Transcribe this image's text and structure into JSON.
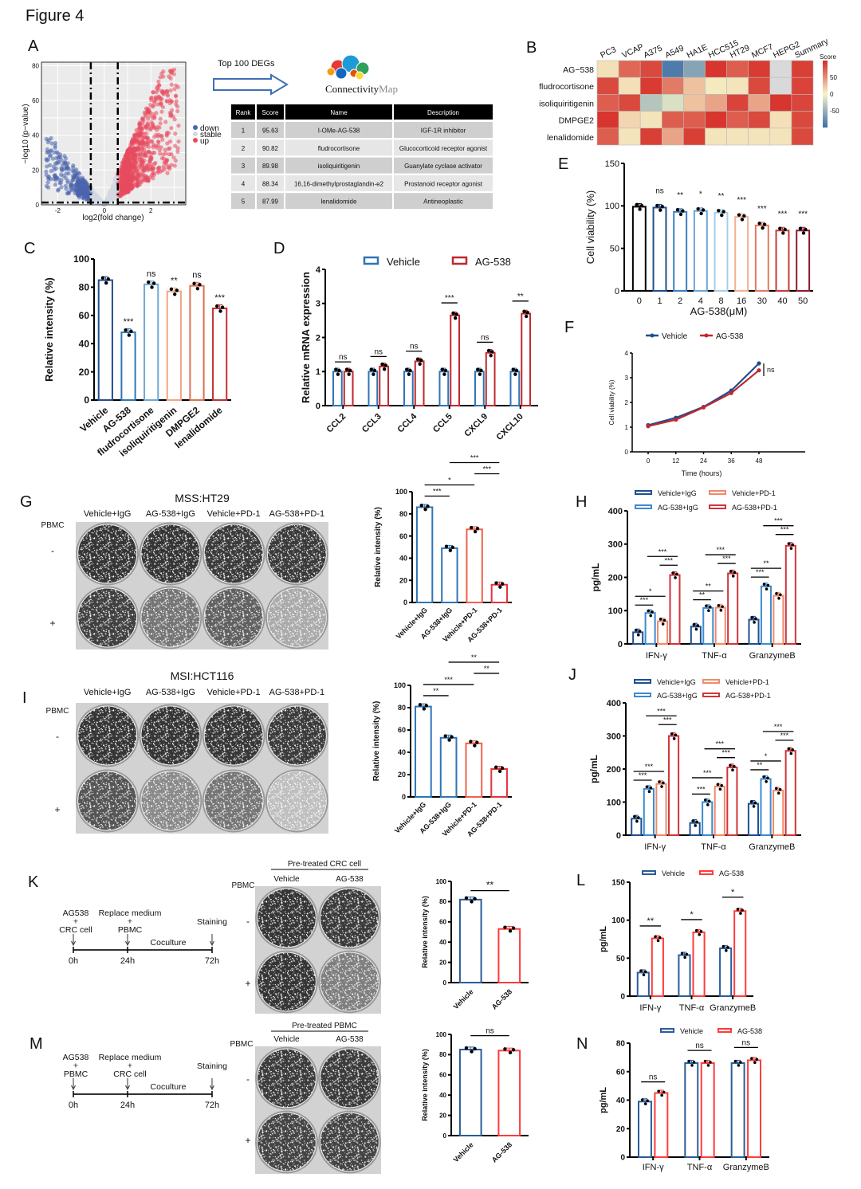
{
  "figure_title": "Figure 4",
  "panels": [
    "A",
    "B",
    "C",
    "D",
    "E",
    "F",
    "G",
    "H",
    "I",
    "J",
    "K",
    "L",
    "M",
    "N"
  ],
  "panelA": {
    "arrow_label": "Top 100 DEGs",
    "logo_text": [
      "Connectivity",
      "Map"
    ],
    "table": {
      "headers": [
        "Rank",
        "Score",
        "Name",
        "Description"
      ],
      "rows": [
        [
          "1",
          "95.63",
          "I-OMe-AG-538",
          "IGF-1R inhibitor"
        ],
        [
          "2",
          "90.82",
          "fludrocortisone",
          "Glucocorticoid receptor agonist"
        ],
        [
          "3",
          "89.98",
          "isoliquiritigenin",
          "Guanylate cyclase activator"
        ],
        [
          "4",
          "88.34",
          "16,16-dimethylprostaglandin-e2",
          "Prostanoid receptor agonist"
        ],
        [
          "5",
          "87.99",
          "lenalidomide",
          "Antineoplastic"
        ]
      ]
    }
  },
  "plateG": {
    "title": "MSS:HT29",
    "columns": [
      "Vehicle+IgG",
      "AG-538+IgG",
      "Vehicle+PD-1",
      "AG-538+PD-1"
    ],
    "row_header": "PBMC",
    "rows": [
      "-",
      "+"
    ]
  },
  "plateI": {
    "title": "MSI:HCT116",
    "columns": [
      "Vehicle+IgG",
      "AG-538+IgG",
      "Vehicle+PD-1",
      "AG-538+PD-1"
    ],
    "row_header": "PBMC",
    "rows": [
      "-",
      "+"
    ]
  },
  "plateK": {
    "header": "Pre-treated CRC cell",
    "columns": [
      "Vehicle",
      "AG-538"
    ],
    "row_header": "PBMC",
    "rows": [
      "-",
      "+"
    ]
  },
  "plateM": {
    "header": "Pre-treated PBMC",
    "columns": [
      "Vehicle",
      "AG-538"
    ],
    "row_header": "PBMC",
    "rows": [
      "-",
      "+"
    ]
  },
  "timelineK": {
    "steps": [
      [
        "AG538",
        "+",
        "CRC cell"
      ],
      [
        "Replace medium",
        "+",
        "PBMC"
      ],
      [
        "Staining"
      ]
    ],
    "phase": "Coculture",
    "times": [
      "0h",
      "24h",
      "72h"
    ]
  },
  "timelineM": {
    "steps": [
      [
        "AG538",
        "+",
        "PBMC"
      ],
      [
        "Replace medium",
        "+",
        "CRC cell"
      ],
      [
        "Staining"
      ]
    ],
    "phase": "Coculture",
    "times": [
      "0h",
      "24h",
      "72h"
    ]
  },
  "chart_data": [
    {
      "panel": "A",
      "type": "scatter",
      "xlabel": "log2(fold change)",
      "ylabel": "−log10 (p−value)",
      "xticks": [
        -2,
        0,
        2
      ],
      "yticks": [
        0,
        20,
        40,
        60,
        80
      ],
      "xlim": [
        -2.7,
        3.5
      ],
      "ylim": [
        0,
        82
      ],
      "legend": [
        "down",
        "stable",
        "up"
      ],
      "legend_colors": [
        "#4a64ad",
        "#d3d9e3",
        "#e84a5f"
      ],
      "thresholds": {
        "log2fc": [
          -0.58,
          0.58
        ],
        "neg_log10_p": 1.3
      },
      "grid": true,
      "legend_position": "right"
    },
    {
      "panel": "B",
      "type": "heatmap",
      "columns": [
        "PC3",
        "VCAP",
        "A375",
        "A549",
        "HA1E",
        "HCC515",
        "HT29",
        "MCF7",
        "HEPG2",
        "Summary"
      ],
      "rows": [
        "AG−538",
        "fludrocortisone",
        "isoliquiritigenin",
        "DMPGE2",
        "lenalidomide"
      ],
      "values": [
        [
          10,
          70,
          85,
          -90,
          -60,
          95,
          75,
          92,
          null,
          90
        ],
        [
          85,
          10,
          92,
          60,
          25,
          5,
          8,
          85,
          null,
          88
        ],
        [
          75,
          85,
          -35,
          -15,
          25,
          40,
          88,
          40,
          95,
          87
        ],
        [
          95,
          15,
          8,
          75,
          75,
          95,
          75,
          85,
          10,
          85
        ],
        [
          75,
          8,
          90,
          40,
          90,
          8,
          8,
          8,
          8,
          85
        ]
      ],
      "colorbar_title": "Score",
      "colorbar_ticks": [
        50,
        0,
        -50
      ],
      "range": [
        -100,
        100
      ],
      "colors": {
        "low": "#3b6ea8",
        "mid": "#f6f4c8",
        "high": "#d52b25",
        "missing": "#d9d9d9"
      }
    },
    {
      "panel": "C",
      "type": "bar",
      "categories": [
        "Vehicle",
        "AG-538",
        "fludrocortisone",
        "isoliquiritigenin",
        "DMPGE2",
        "lenalidomide"
      ],
      "values": [
        85,
        48,
        82,
        77,
        81,
        65
      ],
      "colors": [
        "#1f4e8c",
        "#2e75b6",
        "#6fa8d6",
        "#f4a582",
        "#e07050",
        "#c0302f"
      ],
      "significance": [
        "",
        "***",
        "ns",
        "**",
        "ns",
        "***"
      ],
      "ylabel": "Relative intensity (%)",
      "ylim": [
        0,
        100
      ],
      "yticks": [
        0,
        20,
        40,
        60,
        80,
        100
      ]
    },
    {
      "panel": "D",
      "type": "bar",
      "categories": [
        "CCL2",
        "CCL3",
        "CCL4",
        "CCL5",
        "CXCL9",
        "CXCL10"
      ],
      "series": [
        {
          "name": "Vehicle",
          "values": [
            1,
            1,
            1,
            1,
            1,
            1
          ],
          "color": "#2e75b6"
        },
        {
          "name": "AG-538",
          "values": [
            1.0,
            1.15,
            1.3,
            2.65,
            1.55,
            2.7
          ],
          "color": "#c0282d"
        }
      ],
      "group_comparisons": [
        [
          [
            0,
            1,
            "ns"
          ]
        ],
        [
          [
            0,
            1,
            "ns"
          ]
        ],
        [
          [
            0,
            1,
            "ns"
          ]
        ],
        [
          [
            0,
            1,
            "***"
          ]
        ],
        [
          [
            0,
            1,
            "ns"
          ]
        ],
        [
          [
            0,
            1,
            "**"
          ]
        ]
      ],
      "ylabel": "Relative mRNA expression",
      "ylim": [
        0,
        4
      ],
      "yticks": [
        0,
        1,
        2,
        3,
        4
      ],
      "legend_position": "top"
    },
    {
      "panel": "E",
      "type": "bar",
      "categories": [
        "0",
        "1",
        "2",
        "4",
        "8",
        "16",
        "30",
        "40",
        "50"
      ],
      "values": [
        99,
        98,
        93,
        94,
        92,
        87,
        77,
        71,
        71
      ],
      "colors": [
        "#000000",
        "#1f4e8c",
        "#3a7fc1",
        "#6aa6d8",
        "#a9cde8",
        "#f4b090",
        "#e07a5f",
        "#c73a3a",
        "#8b1a2b"
      ],
      "significance": [
        "",
        "ns",
        "**",
        "*",
        "**",
        "***",
        "***",
        "***",
        "***"
      ],
      "xlabel": "AG-538(μM)",
      "ylabel": "Cell viability (%)",
      "ylim": [
        0,
        150
      ],
      "yticks": [
        0,
        50,
        100,
        150
      ]
    },
    {
      "panel": "F",
      "type": "line",
      "x": [
        0,
        12,
        24,
        36,
        48
      ],
      "series": [
        {
          "name": "Vehicle",
          "values": [
            1.08,
            1.38,
            1.82,
            2.48,
            3.58
          ],
          "color": "#1f4e8c"
        },
        {
          "name": "AG-538",
          "values": [
            1.04,
            1.3,
            1.8,
            2.38,
            3.3
          ],
          "color": "#c0282d"
        }
      ],
      "xlabel": "Time (hours)",
      "ylabel": "Cell viability (%)",
      "ylim": [
        0,
        4
      ],
      "yticks": [
        0,
        1,
        2,
        3,
        4
      ],
      "annotation": "ns",
      "legend_position": "top"
    },
    {
      "panel": "G",
      "type": "bar",
      "categories": [
        "Vehicle+IgG",
        "AG-538+IgG",
        "Vehicle+PD-1",
        "AG-538+PD-1"
      ],
      "values": [
        86,
        49,
        66,
        16
      ],
      "colors": [
        "#2e75b6",
        "#2e75b6",
        "#f0624d",
        "#e3343a"
      ],
      "comparisons": [
        [
          0,
          1,
          "***"
        ],
        [
          0,
          2,
          "*"
        ],
        [
          2,
          3,
          "***"
        ],
        [
          1,
          3,
          "***"
        ]
      ],
      "ylabel": "Relative intensity (%)",
      "ylim": [
        0,
        100
      ],
      "yticks": [
        0,
        20,
        40,
        60,
        80,
        100
      ]
    },
    {
      "panel": "H",
      "type": "bar",
      "categories": [
        "IFN-γ",
        "TNF-α",
        "GranzymeB"
      ],
      "series": [
        {
          "name": "Vehicle+IgG",
          "values": [
            35,
            52,
            73
          ],
          "color": "#1d4f91"
        },
        {
          "name": "AG-538+IgG",
          "values": [
            93,
            108,
            173
          ],
          "color": "#3d8ad0"
        },
        {
          "name": "Vehicle+PD-1",
          "values": [
            68,
            109,
            145
          ],
          "color": "#ef8a6a"
        },
        {
          "name": "AG-538+PD-1",
          "values": [
            207,
            212,
            295
          ],
          "color": "#d0343a"
        }
      ],
      "group_comparisons": [
        [
          [
            0,
            1,
            "***"
          ],
          [
            0,
            2,
            "*"
          ],
          [
            2,
            3,
            "***"
          ],
          [
            1,
            3,
            "***"
          ]
        ],
        [
          [
            0,
            1,
            "**"
          ],
          [
            0,
            2,
            "**"
          ],
          [
            2,
            3,
            "***"
          ],
          [
            1,
            3,
            "***"
          ]
        ],
        [
          [
            0,
            1,
            "***"
          ],
          [
            0,
            2,
            "**"
          ],
          [
            2,
            3,
            "***"
          ],
          [
            1,
            3,
            "***"
          ]
        ]
      ],
      "ylabel": "pg/mL",
      "ylim": [
        0,
        400
      ],
      "yticks": [
        0,
        100,
        200,
        300,
        400
      ],
      "legend_position": "top"
    },
    {
      "panel": "I",
      "type": "bar",
      "categories": [
        "Vehicle+IgG",
        "AG-538+IgG",
        "Vehicle+PD-1",
        "AG-538+PD-1"
      ],
      "values": [
        81,
        53,
        48,
        25
      ],
      "colors": [
        "#2e75b6",
        "#2e75b6",
        "#f0624d",
        "#e3343a"
      ],
      "comparisons": [
        [
          0,
          1,
          "**"
        ],
        [
          0,
          2,
          "***"
        ],
        [
          2,
          3,
          "**"
        ],
        [
          1,
          3,
          "**"
        ]
      ],
      "ylabel": "Relative intensity (%)",
      "ylim": [
        0,
        100
      ],
      "yticks": [
        0,
        20,
        40,
        60,
        80,
        100
      ]
    },
    {
      "panel": "J",
      "type": "bar",
      "categories": [
        "IFN-γ",
        "TNF-α",
        "GranzymeB"
      ],
      "series": [
        {
          "name": "Vehicle+IgG",
          "values": [
            50,
            37,
            95
          ],
          "color": "#1d4f91"
        },
        {
          "name": "AG-538+IgG",
          "values": [
            140,
            100,
            170
          ],
          "color": "#3d8ad0"
        },
        {
          "name": "Vehicle+PD-1",
          "values": [
            155,
            147,
            135
          ],
          "color": "#ef8a6a"
        },
        {
          "name": "AG-538+PD-1",
          "values": [
            300,
            205,
            255
          ],
          "color": "#d0343a"
        }
      ],
      "group_comparisons": [
        [
          [
            0,
            1,
            "***"
          ],
          [
            0,
            2,
            "***"
          ],
          [
            2,
            3,
            "***"
          ],
          [
            1,
            3,
            "***"
          ]
        ],
        [
          [
            0,
            1,
            "***"
          ],
          [
            0,
            2,
            "***"
          ],
          [
            2,
            3,
            "***"
          ],
          [
            1,
            3,
            "***"
          ]
        ],
        [
          [
            0,
            1,
            "**"
          ],
          [
            0,
            2,
            "*"
          ],
          [
            2,
            3,
            "***"
          ],
          [
            1,
            3,
            "***"
          ]
        ]
      ],
      "ylabel": "pg/mL",
      "ylim": [
        0,
        400
      ],
      "yticks": [
        0,
        100,
        200,
        300,
        400
      ],
      "legend_position": "top"
    },
    {
      "panel": "K",
      "type": "bar",
      "categories": [
        "Vehicle",
        "AG-538"
      ],
      "values": [
        82,
        53
      ],
      "colors": [
        "#2a5c9a",
        "#ff3b3b"
      ],
      "comparisons": [
        [
          0,
          1,
          "**"
        ]
      ],
      "ylabel": "Relative intensity (%)",
      "ylim": [
        0,
        100
      ],
      "yticks": [
        0,
        20,
        40,
        60,
        80,
        100
      ]
    },
    {
      "panel": "L",
      "type": "bar",
      "categories": [
        "IFN-γ",
        "TNF-α",
        "GranzymeB"
      ],
      "series": [
        {
          "name": "Vehicle",
          "values": [
            31,
            54,
            63
          ],
          "color": "#2a5c9a"
        },
        {
          "name": "AG-538",
          "values": [
            76,
            84,
            112
          ],
          "color": "#ff3b3b"
        }
      ],
      "group_comparisons": [
        [
          [
            0,
            1,
            "**"
          ]
        ],
        [
          [
            0,
            1,
            "*"
          ]
        ],
        [
          [
            0,
            1,
            "*"
          ]
        ]
      ],
      "ylabel": "pg/mL",
      "ylim": [
        0,
        150
      ],
      "yticks": [
        0,
        50,
        100,
        150
      ],
      "legend_position": "top"
    },
    {
      "panel": "M",
      "type": "bar",
      "categories": [
        "Vehicle",
        "AG-538"
      ],
      "values": [
        85,
        84
      ],
      "colors": [
        "#2a5c9a",
        "#ff3b3b"
      ],
      "comparisons": [
        [
          0,
          1,
          "ns"
        ]
      ],
      "ylabel": "Relative intensity (%)",
      "ylim": [
        0,
        100
      ],
      "yticks": [
        0,
        20,
        40,
        60,
        80,
        100
      ]
    },
    {
      "panel": "N",
      "type": "bar",
      "categories": [
        "IFN-γ",
        "TNF-α",
        "GranzymeB"
      ],
      "series": [
        {
          "name": "Vehicle",
          "values": [
            39,
            66,
            66
          ],
          "color": "#2a5c9a"
        },
        {
          "name": "AG-538",
          "values": [
            45,
            66,
            68
          ],
          "color": "#ff3b3b"
        }
      ],
      "group_comparisons": [
        [
          [
            0,
            1,
            "ns"
          ]
        ],
        [
          [
            0,
            1,
            "ns"
          ]
        ],
        [
          [
            0,
            1,
            "ns"
          ]
        ]
      ],
      "ylabel": "pg/mL",
      "ylim": [
        0,
        80
      ],
      "yticks": [
        0,
        20,
        40,
        60,
        80
      ],
      "legend_position": "top"
    }
  ]
}
